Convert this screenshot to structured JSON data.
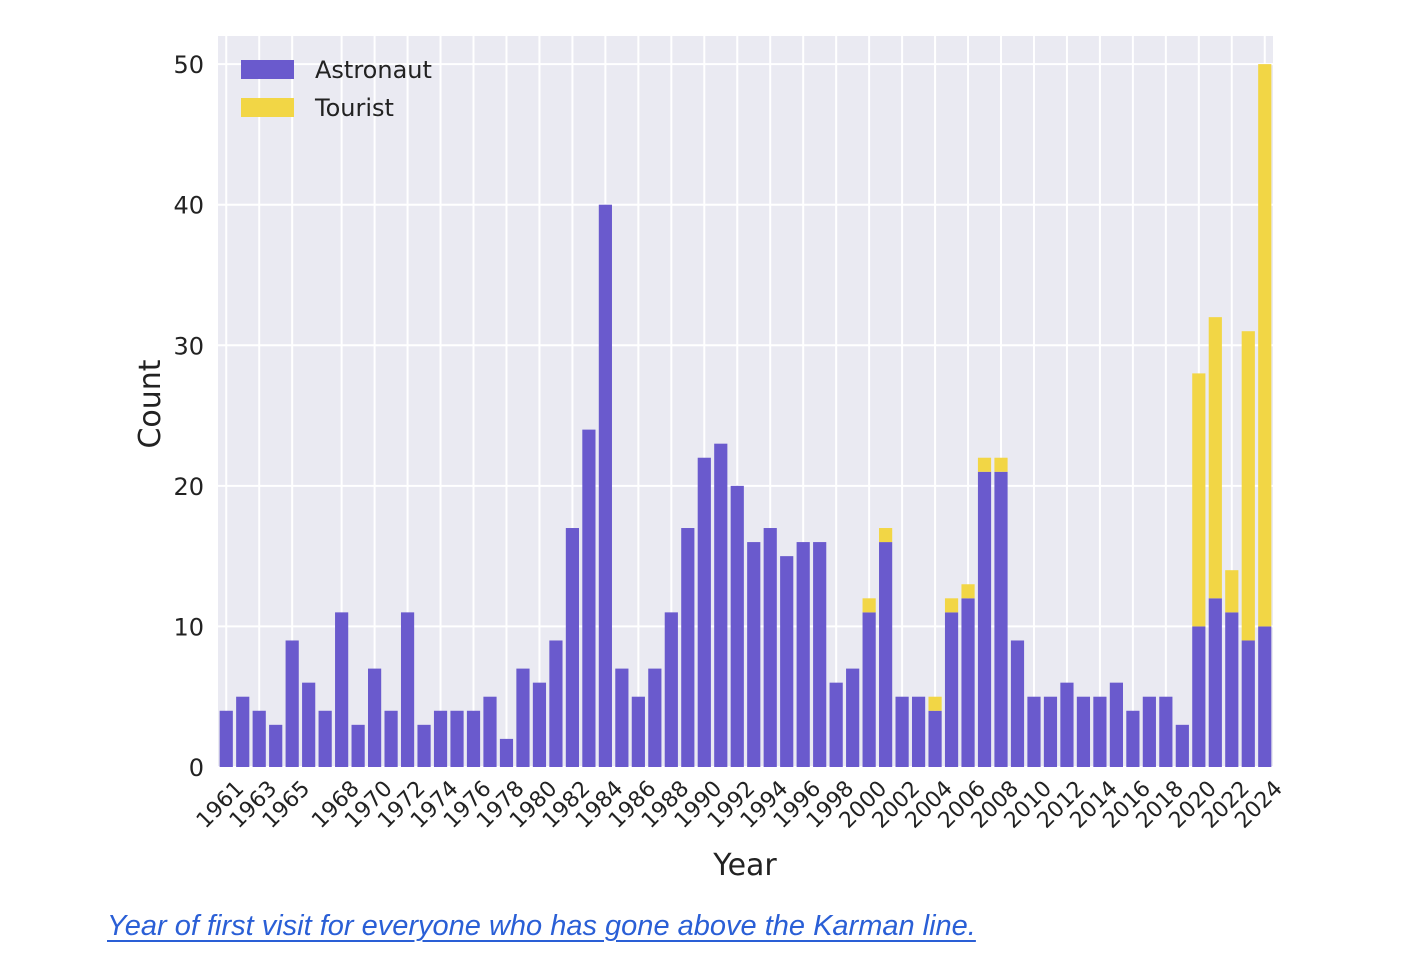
{
  "caption": "Year of first visit for everyone who has gone above the Karman line.",
  "colors": {
    "astronaut": "#6a5acd",
    "tourist": "#f2d645",
    "plot_bg": "#eaeaf2",
    "grid": "#ffffff"
  },
  "chart_data": {
    "type": "bar",
    "stacked": true,
    "title": "",
    "xlabel": "Year",
    "ylabel": "Count",
    "ylim": [
      0,
      52
    ],
    "yticks": [
      0,
      10,
      20,
      30,
      40,
      50
    ],
    "legend_position": "top-left",
    "categories": [
      "1961",
      "1962",
      "1963",
      "1964",
      "1965",
      "1966",
      "1967",
      "1968",
      "1969",
      "1970",
      "1971",
      "1972",
      "1973",
      "1974",
      "1975",
      "1976",
      "1977",
      "1978",
      "1979",
      "1980",
      "1981",
      "1982",
      "1983",
      "1984",
      "1985",
      "1986",
      "1987",
      "1988",
      "1989",
      "1990",
      "1991",
      "1992",
      "1993",
      "1994",
      "1995",
      "1996",
      "1997",
      "1998",
      "1999",
      "2000",
      "2001",
      "2002",
      "2003",
      "2004",
      "2005",
      "2006",
      "2007",
      "2008",
      "2009",
      "2010",
      "2011",
      "2012",
      "2013",
      "2014",
      "2015",
      "2016",
      "2017",
      "2018",
      "2019",
      "2020",
      "2021",
      "2022",
      "2023",
      "2024"
    ],
    "xtick_labels": [
      "1961",
      "1963",
      "1965",
      "1968",
      "1970",
      "1972",
      "1974",
      "1976",
      "1978",
      "1980",
      "1982",
      "1984",
      "1986",
      "1988",
      "1990",
      "1992",
      "1994",
      "1996",
      "1998",
      "2000",
      "2002",
      "2004",
      "2006",
      "2008",
      "2010",
      "2012",
      "2014",
      "2016",
      "2018",
      "2020",
      "2022",
      "2024"
    ],
    "series": [
      {
        "name": "Astronaut",
        "values": [
          4,
          5,
          4,
          3,
          9,
          6,
          4,
          11,
          3,
          7,
          4,
          11,
          3,
          4,
          4,
          4,
          5,
          2,
          7,
          6,
          9,
          17,
          24,
          40,
          7,
          5,
          7,
          11,
          17,
          22,
          23,
          20,
          16,
          17,
          15,
          16,
          16,
          6,
          7,
          11,
          16,
          5,
          5,
          4,
          11,
          12,
          21,
          21,
          9,
          5,
          5,
          6,
          5,
          5,
          6,
          4,
          5,
          5,
          3,
          10,
          12,
          11,
          9,
          10
        ]
      },
      {
        "name": "Tourist",
        "values": [
          0,
          0,
          0,
          0,
          0,
          0,
          0,
          0,
          0,
          0,
          0,
          0,
          0,
          0,
          0,
          0,
          0,
          0,
          0,
          0,
          0,
          0,
          0,
          0,
          0,
          0,
          0,
          0,
          0,
          0,
          0,
          0,
          0,
          0,
          0,
          0,
          0,
          0,
          0,
          1,
          1,
          0,
          0,
          1,
          1,
          1,
          1,
          1,
          0,
          0,
          0,
          0,
          0,
          0,
          0,
          0,
          0,
          0,
          0,
          18,
          20,
          3,
          22,
          40
        ]
      }
    ]
  }
}
